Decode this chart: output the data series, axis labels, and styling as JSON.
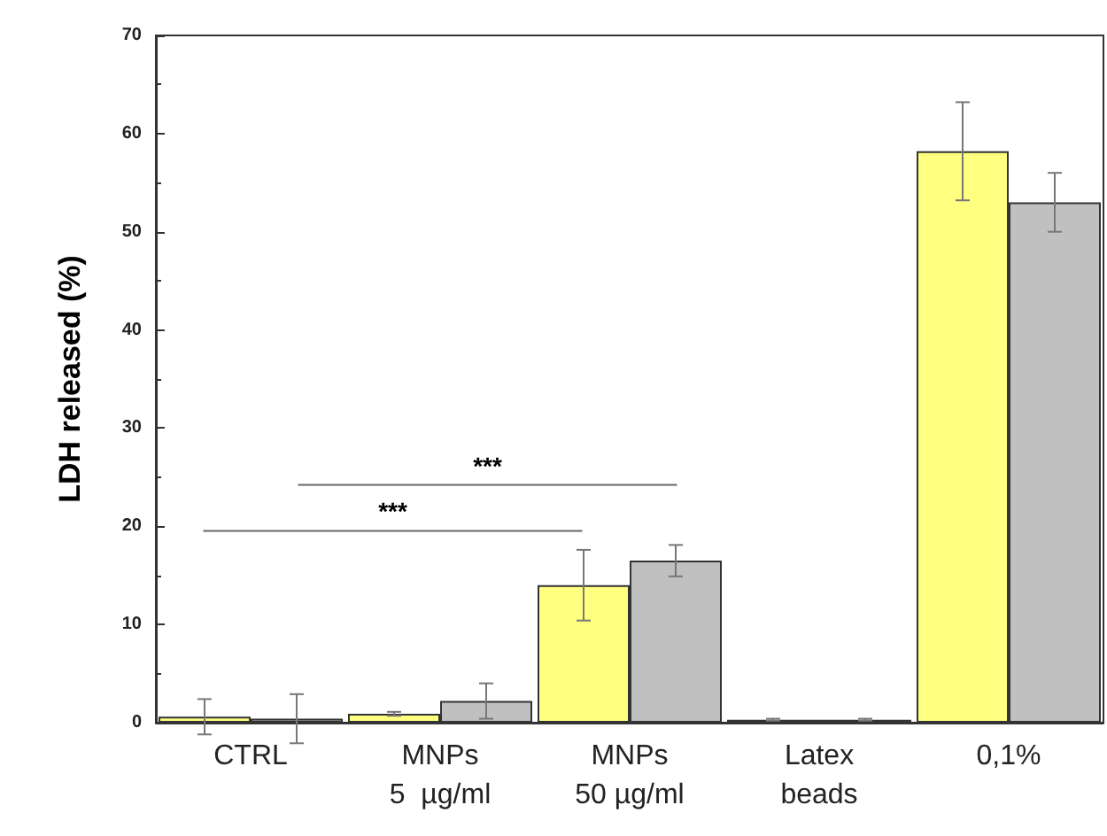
{
  "chart_data": {
    "type": "bar",
    "ylabel": "LDH released (%)",
    "categories": [
      "CTRL",
      "MNPs\n5  µg/ml",
      "MNPs\n50 µg/ml",
      "Latex\nbeads",
      "0,1%"
    ],
    "series": [
      {
        "color": "#ffff80",
        "values": [
          0.6,
          0.9,
          14.0,
          0.3,
          58.2
        ],
        "errors": [
          1.8,
          0.2,
          3.6,
          0.1,
          5.0
        ]
      },
      {
        "color": "#c0c0c0",
        "values": [
          0.4,
          2.2,
          16.5,
          0.3,
          53.0
        ],
        "errors": [
          2.5,
          1.8,
          1.6,
          0.1,
          3.0
        ]
      }
    ],
    "ylim": [
      0,
      70
    ],
    "yticks": [
      0,
      10,
      20,
      30,
      40,
      50,
      60,
      70
    ],
    "annotations": [
      "***",
      "***"
    ]
  }
}
